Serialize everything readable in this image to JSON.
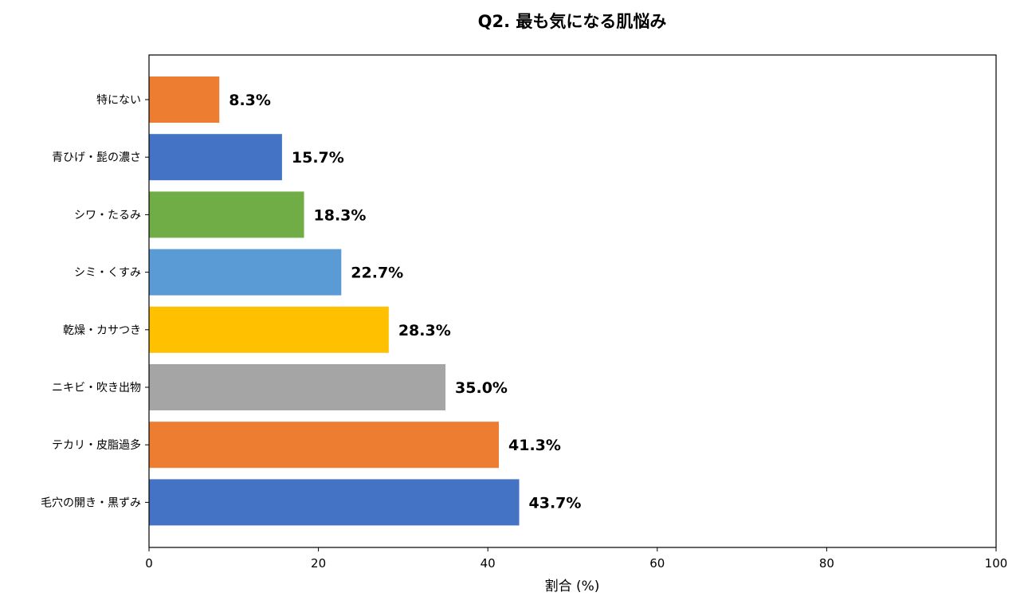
{
  "chart_data": {
    "type": "bar",
    "orientation": "horizontal",
    "title": "Q2. 最も気になる肌悩み",
    "xlabel": "割合 (%)",
    "ylabel": "",
    "xlim": [
      0,
      100
    ],
    "xticks": [
      "0",
      "20",
      "40",
      "60",
      "80",
      "100"
    ],
    "grid": false,
    "categories": [
      "特にない",
      "青ひげ・髭の濃さ",
      "シワ・たるみ",
      "シミ・くすみ",
      "乾燥・カサつき",
      "ニキビ・吹き出物",
      "テカリ・皮脂過多",
      "毛穴の開き・黒ずみ"
    ],
    "values": [
      8.3,
      15.7,
      18.3,
      22.7,
      28.3,
      35.0,
      41.3,
      43.7
    ],
    "data_labels": [
      "8.3%",
      "15.7%",
      "18.3%",
      "22.7%",
      "28.3%",
      "35.0%",
      "41.3%",
      "43.7%"
    ],
    "colors": [
      "#ED7D31",
      "#4472C4",
      "#70AD47",
      "#5B9BD5",
      "#FFC000",
      "#A5A5A5",
      "#ED7D31",
      "#4472C4"
    ]
  }
}
